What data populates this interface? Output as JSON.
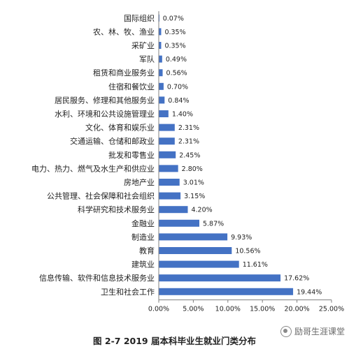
{
  "chart_data": {
    "type": "bar",
    "orientation": "horizontal",
    "categories": [
      "国际组织",
      "农、林、牧、渔业",
      "采矿业",
      "军队",
      "租赁和商业服务业",
      "住宿和餐饮业",
      "居民服务、修理和其他服务业",
      "水利、环境和公共设施管理业",
      "文化、体育和娱乐业",
      "交通运输、仓储和邮政业",
      "批发和零售业",
      "电力、热力、燃气及水生产和供应业",
      "房地产业",
      "公共管理、社会保障和社会组织",
      "科学研究和技术服务业",
      "金融业",
      "制造业",
      "教育",
      "建筑业",
      "信息传输、软件和信息技术服务业",
      "卫生和社会工作"
    ],
    "values": [
      0.07,
      0.35,
      0.35,
      0.49,
      0.56,
      0.7,
      0.84,
      1.4,
      2.31,
      2.31,
      2.45,
      2.8,
      3.01,
      3.15,
      4.2,
      5.87,
      9.93,
      10.56,
      11.61,
      17.62,
      19.44
    ],
    "value_labels": [
      "0.07%",
      "0.35%",
      "0.35%",
      "0.49%",
      "0.56%",
      "0.70%",
      "0.84%",
      "1.40%",
      "2.31%",
      "2.31%",
      "2.45%",
      "2.80%",
      "3.01%",
      "3.15%",
      "4.20%",
      "5.87%",
      "9.93%",
      "10.56%",
      "11.61%",
      "17.62%",
      "19.44%"
    ],
    "xlim": [
      0,
      25
    ],
    "x_ticks": [
      "0.00%",
      "5.00%",
      "10.00%",
      "15.00%",
      "20.00%",
      "25.00%"
    ],
    "grid": false,
    "bar_color": "#4472C4",
    "title": "图 2-7  2019 届本科毕业生就业门类分布"
  },
  "watermark": {
    "text": "励哥生涯课堂",
    "icon": "wechat-icon"
  }
}
